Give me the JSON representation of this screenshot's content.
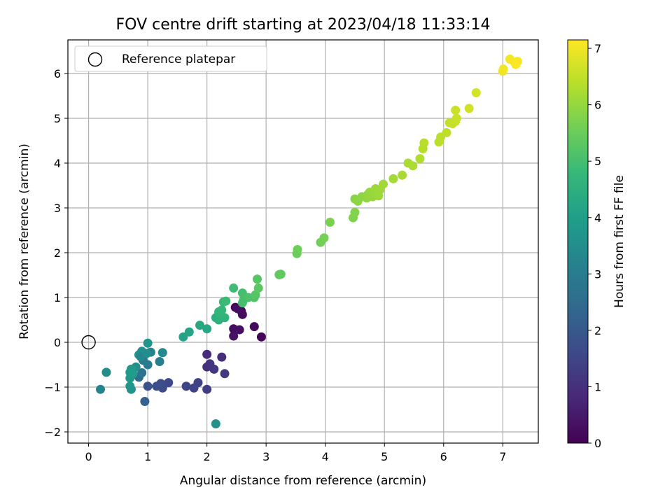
{
  "chart_data": {
    "type": "scatter",
    "title": "FOV centre drift starting at 2023/04/18 11:33:14",
    "xlabel": "Angular distance from reference (arcmin)",
    "ylabel": "Rotation from reference (arcmin)",
    "xlim": [
      -0.35,
      7.6
    ],
    "ylim": [
      -2.25,
      6.75
    ],
    "xticks": [
      0,
      1,
      2,
      3,
      4,
      5,
      6,
      7
    ],
    "yticks": [
      -2,
      -1,
      0,
      1,
      2,
      3,
      4,
      5,
      6
    ],
    "grid": true,
    "legend": {
      "placement": "top-left",
      "entries": [
        {
          "label": "Reference platepar",
          "marker": "open-circle"
        }
      ]
    },
    "reference_point": {
      "x": 0,
      "y": 0
    },
    "colorbar": {
      "label": "Hours from first FF file",
      "range": [
        0,
        7.15
      ],
      "ticks": [
        0,
        1,
        2,
        3,
        4,
        5,
        6,
        7
      ],
      "colormap": "viridis"
    },
    "colormap_stops": [
      "#440154",
      "#482878",
      "#3e4989",
      "#31688e",
      "#26828e",
      "#1f9e89",
      "#35b779",
      "#6ece58",
      "#b5de2b",
      "#fde725"
    ],
    "points": [
      {
        "x": 2.48,
        "y": 0.78,
        "c": 0.15
      },
      {
        "x": 2.58,
        "y": 0.7,
        "c": 0.2
      },
      {
        "x": 2.6,
        "y": 0.62,
        "c": 0.22
      },
      {
        "x": 2.45,
        "y": 0.3,
        "c": 0.25
      },
      {
        "x": 2.55,
        "y": 0.28,
        "c": 0.3
      },
      {
        "x": 2.45,
        "y": 0.14,
        "c": 0.35
      },
      {
        "x": 2.8,
        "y": 0.35,
        "c": 0.18
      },
      {
        "x": 2.92,
        "y": 0.12,
        "c": 0.1
      },
      {
        "x": 2.52,
        "y": 0.75,
        "c": 0.28
      },
      {
        "x": 2.0,
        "y": -0.27,
        "c": 0.9
      },
      {
        "x": 2.0,
        "y": -0.55,
        "c": 1.0
      },
      {
        "x": 2.05,
        "y": -0.48,
        "c": 1.05
      },
      {
        "x": 2.12,
        "y": -0.6,
        "c": 1.1
      },
      {
        "x": 2.25,
        "y": -0.33,
        "c": 0.95
      },
      {
        "x": 2.3,
        "y": -0.7,
        "c": 1.2
      },
      {
        "x": 2.0,
        "y": -1.05,
        "c": 1.3
      },
      {
        "x": 1.85,
        "y": -0.9,
        "c": 1.4
      },
      {
        "x": 1.78,
        "y": -1.02,
        "c": 1.45
      },
      {
        "x": 1.65,
        "y": -0.98,
        "c": 1.5
      },
      {
        "x": 1.35,
        "y": -0.9,
        "c": 1.6
      },
      {
        "x": 1.25,
        "y": -1.02,
        "c": 1.65
      },
      {
        "x": 1.22,
        "y": -0.92,
        "c": 1.7
      },
      {
        "x": 1.15,
        "y": -0.98,
        "c": 1.75
      },
      {
        "x": 1.0,
        "y": -0.98,
        "c": 1.85
      },
      {
        "x": 0.95,
        "y": -1.32,
        "c": 2.2
      },
      {
        "x": 0.85,
        "y": -0.78,
        "c": 2.5
      },
      {
        "x": 0.9,
        "y": -0.68,
        "c": 2.7
      },
      {
        "x": 0.92,
        "y": -0.4,
        "c": 2.9
      },
      {
        "x": 1.0,
        "y": -0.5,
        "c": 3.0
      },
      {
        "x": 1.05,
        "y": -0.22,
        "c": 3.2
      },
      {
        "x": 1.2,
        "y": -0.43,
        "c": 3.1
      },
      {
        "x": 1.25,
        "y": -0.23,
        "c": 3.4
      },
      {
        "x": 0.8,
        "y": -0.55,
        "c": 3.5
      },
      {
        "x": 0.85,
        "y": -0.28,
        "c": 3.6
      },
      {
        "x": 0.9,
        "y": -0.2,
        "c": 3.55
      },
      {
        "x": 1.0,
        "y": -0.02,
        "c": 3.7
      },
      {
        "x": 0.88,
        "y": -0.32,
        "c": 3.3
      },
      {
        "x": 0.98,
        "y": -0.25,
        "c": 3.45
      },
      {
        "x": 0.7,
        "y": -0.8,
        "c": 3.8
      },
      {
        "x": 0.72,
        "y": -1.05,
        "c": 3.65
      },
      {
        "x": 0.7,
        "y": -0.98,
        "c": 3.75
      },
      {
        "x": 0.72,
        "y": -0.6,
        "c": 3.9
      },
      {
        "x": 0.7,
        "y": -0.67,
        "c": 3.85
      },
      {
        "x": 0.75,
        "y": -0.7,
        "c": 3.95
      },
      {
        "x": 0.3,
        "y": -0.67,
        "c": 3.5
      },
      {
        "x": 0.2,
        "y": -1.05,
        "c": 3.2
      },
      {
        "x": 2.15,
        "y": -1.82,
        "c": 3.6
      },
      {
        "x": 1.6,
        "y": 0.12,
        "c": 4.1
      },
      {
        "x": 1.7,
        "y": 0.23,
        "c": 4.2
      },
      {
        "x": 1.88,
        "y": 0.38,
        "c": 4.3
      },
      {
        "x": 2.0,
        "y": 0.3,
        "c": 4.25
      },
      {
        "x": 2.15,
        "y": 0.55,
        "c": 4.5
      },
      {
        "x": 2.2,
        "y": 0.5,
        "c": 4.55
      },
      {
        "x": 2.25,
        "y": 0.58,
        "c": 4.6
      },
      {
        "x": 2.3,
        "y": 0.55,
        "c": 4.65
      },
      {
        "x": 2.2,
        "y": 0.68,
        "c": 4.7
      },
      {
        "x": 2.25,
        "y": 0.72,
        "c": 4.75
      },
      {
        "x": 2.28,
        "y": 0.9,
        "c": 4.8
      },
      {
        "x": 2.32,
        "y": 0.92,
        "c": 4.85
      },
      {
        "x": 2.45,
        "y": 1.21,
        "c": 4.9
      },
      {
        "x": 2.6,
        "y": 1.1,
        "c": 5.0
      },
      {
        "x": 2.62,
        "y": 0.95,
        "c": 5.05
      },
      {
        "x": 2.7,
        "y": 1.0,
        "c": 5.1
      },
      {
        "x": 2.8,
        "y": 1.0,
        "c": 5.15
      },
      {
        "x": 2.82,
        "y": 1.06,
        "c": 5.2
      },
      {
        "x": 2.85,
        "y": 1.41,
        "c": 5.25
      },
      {
        "x": 2.87,
        "y": 1.21,
        "c": 5.3
      },
      {
        "x": 2.6,
        "y": 0.88,
        "c": 5.0
      },
      {
        "x": 3.22,
        "y": 1.51,
        "c": 5.35
      },
      {
        "x": 3.25,
        "y": 1.52,
        "c": 5.4
      },
      {
        "x": 3.52,
        "y": 1.98,
        "c": 5.5
      },
      {
        "x": 3.53,
        "y": 2.07,
        "c": 5.55
      },
      {
        "x": 3.92,
        "y": 2.23,
        "c": 5.6
      },
      {
        "x": 3.98,
        "y": 2.33,
        "c": 5.62
      },
      {
        "x": 4.08,
        "y": 2.68,
        "c": 5.7
      },
      {
        "x": 4.47,
        "y": 2.78,
        "c": 5.75
      },
      {
        "x": 4.5,
        "y": 2.9,
        "c": 5.8
      },
      {
        "x": 4.5,
        "y": 3.2,
        "c": 5.85
      },
      {
        "x": 4.55,
        "y": 3.15,
        "c": 5.9
      },
      {
        "x": 4.62,
        "y": 3.25,
        "c": 5.92
      },
      {
        "x": 4.7,
        "y": 3.22,
        "c": 5.95
      },
      {
        "x": 4.72,
        "y": 3.3,
        "c": 5.98
      },
      {
        "x": 4.75,
        "y": 3.35,
        "c": 6.0
      },
      {
        "x": 4.8,
        "y": 3.25,
        "c": 6.02
      },
      {
        "x": 4.85,
        "y": 3.43,
        "c": 6.05
      },
      {
        "x": 4.9,
        "y": 3.27,
        "c": 6.08
      },
      {
        "x": 4.92,
        "y": 3.4,
        "c": 6.1
      },
      {
        "x": 4.98,
        "y": 3.53,
        "c": 6.12
      },
      {
        "x": 5.15,
        "y": 3.65,
        "c": 6.15
      },
      {
        "x": 5.3,
        "y": 3.73,
        "c": 6.2
      },
      {
        "x": 5.4,
        "y": 4.0,
        "c": 6.22
      },
      {
        "x": 5.48,
        "y": 3.94,
        "c": 6.25
      },
      {
        "x": 5.6,
        "y": 4.1,
        "c": 6.3
      },
      {
        "x": 5.65,
        "y": 4.32,
        "c": 6.35
      },
      {
        "x": 5.67,
        "y": 4.45,
        "c": 6.38
      },
      {
        "x": 5.92,
        "y": 4.47,
        "c": 6.4
      },
      {
        "x": 5.95,
        "y": 4.58,
        "c": 6.42
      },
      {
        "x": 6.05,
        "y": 4.68,
        "c": 6.45
      },
      {
        "x": 6.1,
        "y": 4.9,
        "c": 6.5
      },
      {
        "x": 6.15,
        "y": 4.88,
        "c": 6.52
      },
      {
        "x": 6.2,
        "y": 4.93,
        "c": 6.55
      },
      {
        "x": 6.22,
        "y": 5.0,
        "c": 6.58
      },
      {
        "x": 6.2,
        "y": 5.18,
        "c": 6.6
      },
      {
        "x": 6.43,
        "y": 5.22,
        "c": 6.65
      },
      {
        "x": 6.55,
        "y": 5.57,
        "c": 6.7
      },
      {
        "x": 7.0,
        "y": 6.05,
        "c": 7.0
      },
      {
        "x": 7.01,
        "y": 6.1,
        "c": 7.02
      },
      {
        "x": 7.12,
        "y": 6.32,
        "c": 7.05
      },
      {
        "x": 7.2,
        "y": 6.25,
        "c": 7.08
      },
      {
        "x": 7.25,
        "y": 6.27,
        "c": 7.1
      },
      {
        "x": 7.22,
        "y": 6.2,
        "c": 7.12
      }
    ]
  }
}
